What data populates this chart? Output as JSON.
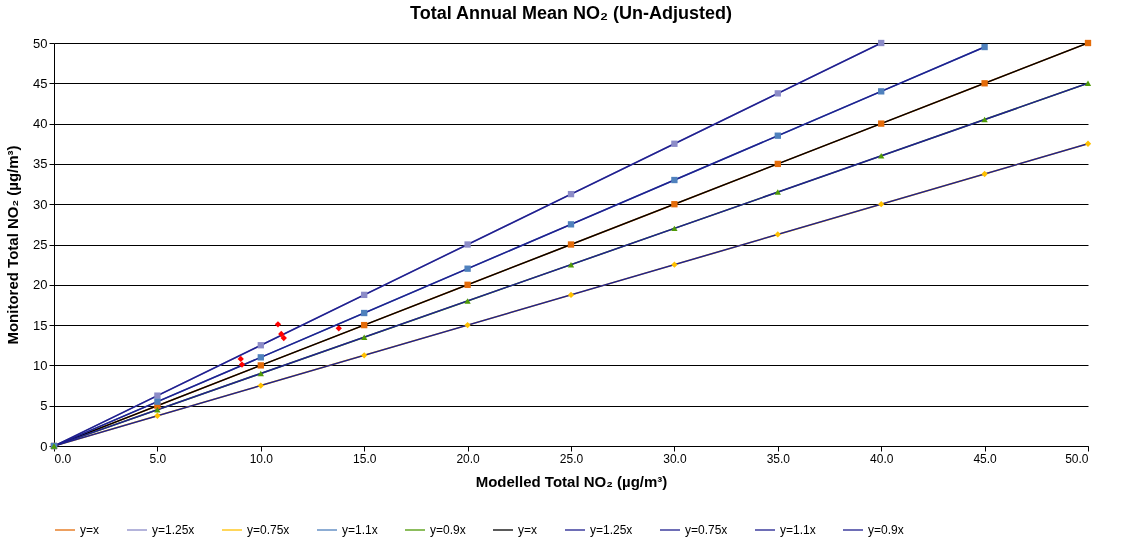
{
  "chart_data": {
    "type": "line",
    "title": "Total Annual Mean NO₂ (Un-Adjusted)",
    "xlabel": "Modelled Total NO₂ (µg/m³)",
    "ylabel": "Monitored Total NO₂ (µg/m³)",
    "xlim": [
      0,
      50
    ],
    "ylim": [
      0,
      50
    ],
    "xticks": [
      {
        "value": 0,
        "label": "0.0"
      },
      {
        "value": 5,
        "label": "5.0"
      },
      {
        "value": 10,
        "label": "10.0"
      },
      {
        "value": 15,
        "label": "15.0"
      },
      {
        "value": 20,
        "label": "20.0"
      },
      {
        "value": 25,
        "label": "25.0"
      },
      {
        "value": 30,
        "label": "30.0"
      },
      {
        "value": 35,
        "label": "35.0"
      },
      {
        "value": 40,
        "label": "40.0"
      },
      {
        "value": 45,
        "label": "45.0"
      },
      {
        "value": 50,
        "label": "50.0"
      }
    ],
    "yticks": [
      0,
      5,
      10,
      15,
      20,
      25,
      30,
      35,
      40,
      45,
      50
    ],
    "grid": "y",
    "legend": "bottom",
    "series": [
      {
        "name": "y=x",
        "color": "#e46c0a",
        "marker": "square",
        "x": [
          0,
          5,
          10,
          15,
          20,
          25,
          30,
          35,
          40,
          45,
          50
        ],
        "values": [
          0,
          5,
          10,
          15,
          20,
          25,
          30,
          35,
          40,
          45,
          50
        ]
      },
      {
        "name": "y=1.25x",
        "color": "#8c8cc8",
        "marker": "square",
        "x": [
          0,
          5,
          10,
          15,
          20,
          25,
          30,
          35,
          40
        ],
        "values": [
          0,
          6.25,
          12.5,
          18.75,
          25,
          31.25,
          37.5,
          43.75,
          50
        ]
      },
      {
        "name": "y=0.75x",
        "color": "#ffc000",
        "marker": "diamond",
        "x": [
          0,
          5,
          10,
          15,
          20,
          25,
          30,
          35,
          40,
          45,
          50
        ],
        "values": [
          0,
          3.75,
          7.5,
          11.25,
          15,
          18.75,
          22.5,
          26.25,
          30,
          33.75,
          37.5
        ]
      },
      {
        "name": "y=1.1x",
        "color": "#4f81bd",
        "marker": "square",
        "x": [
          0,
          5,
          10,
          15,
          20,
          25,
          30,
          35,
          40,
          45
        ],
        "values": [
          0,
          5.5,
          11,
          16.5,
          22,
          27.5,
          33,
          38.5,
          44,
          49.5
        ]
      },
      {
        "name": "y=0.9x",
        "color": "#4e9a06",
        "marker": "triangle",
        "x": [
          0,
          5,
          10,
          15,
          20,
          25,
          30,
          35,
          40,
          45,
          50
        ],
        "values": [
          0,
          4.5,
          9,
          13.5,
          18,
          22.5,
          27,
          31.5,
          36,
          40.5,
          45
        ]
      },
      {
        "name": "y=x",
        "color": "#000000",
        "marker": "none",
        "x": [
          0,
          50
        ],
        "values": [
          0,
          50
        ]
      },
      {
        "name": "y=1.25x",
        "color": "#1f1f8f",
        "marker": "none",
        "x": [
          0,
          40
        ],
        "values": [
          0,
          50
        ]
      },
      {
        "name": "y=0.75x",
        "color": "#1f1f8f",
        "marker": "none",
        "x": [
          0,
          50
        ],
        "values": [
          0,
          37.5
        ]
      },
      {
        "name": "y=1.1x",
        "color": "#1f1f8f",
        "marker": "none",
        "x": [
          0,
          45
        ],
        "values": [
          0,
          49.5
        ]
      },
      {
        "name": "y=0.9x",
        "color": "#1f1f8f",
        "marker": "none",
        "x": [
          0,
          50
        ],
        "values": [
          0,
          45
        ]
      },
      {
        "type": "scatter",
        "color": "#ff0000",
        "marker": "diamond",
        "x": [
          9.03,
          9.09,
          10.83,
          10.99,
          11.11,
          13.77
        ],
        "values": [
          10.8,
          10.1,
          15.1,
          13.9,
          13.4,
          14.6
        ]
      }
    ]
  }
}
